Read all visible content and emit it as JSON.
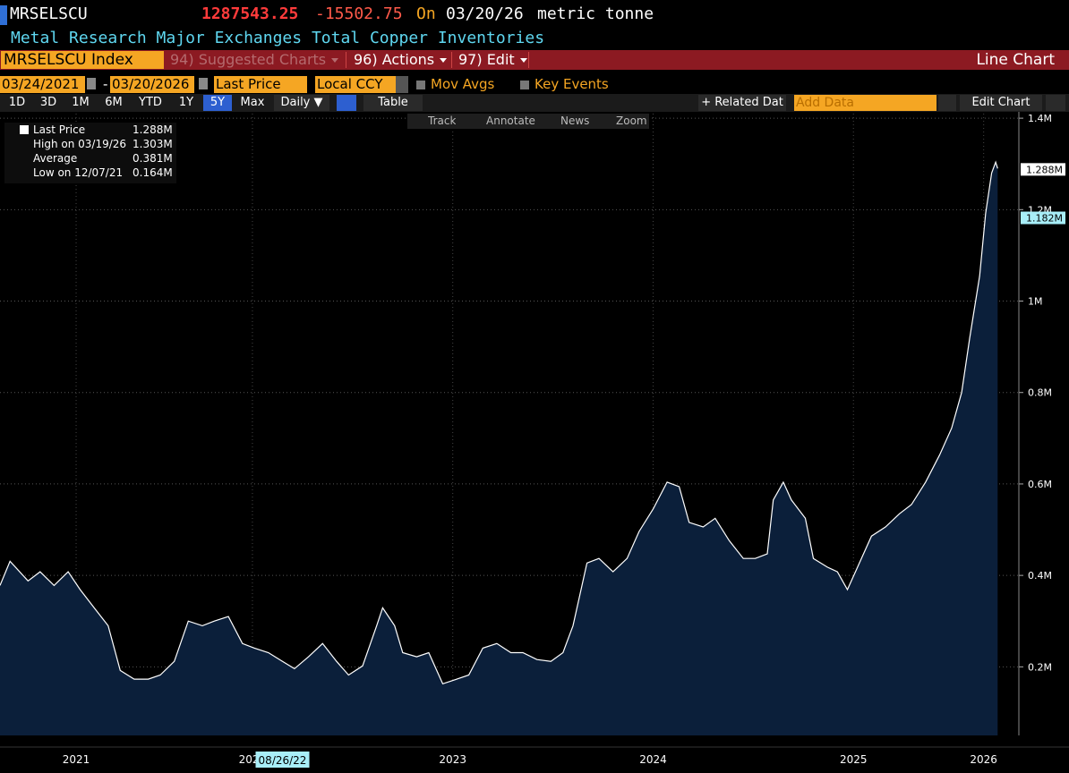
{
  "header": {
    "ticker": "MRSELSCU",
    "price": 1287543.25,
    "change": -15502.75,
    "on": "On",
    "date": "03/20/26",
    "unit": "metric tonne",
    "description": "Metal Research Major Exchanges Total Copper Inventories"
  },
  "toolbar": {
    "security": "MRSELSCU Index",
    "suggested": "94) Suggested Charts",
    "actions": "96) Actions",
    "edit": "97) Edit",
    "chart_type": "Line Chart"
  },
  "range_bar": {
    "start": "03/24/2021",
    "dash": "-",
    "end": "03/20/2026",
    "field": "Last Price",
    "currency": "Local CCY",
    "mov_avgs": "Mov Avgs",
    "key_events": "Key Events"
  },
  "buttons": [
    "1D",
    "3D",
    "1M",
    "6M",
    "YTD",
    "1Y",
    "5Y",
    "Max"
  ],
  "frequency": "Daily ▼",
  "table": "Table",
  "related": "+ Related Dat",
  "add_data": "Add Data",
  "edit_chart": "Edit Chart",
  "tools": [
    "Track",
    "Annotate",
    "News",
    "Zoom"
  ],
  "legend_box": [
    {
      "label": "Last Price",
      "value": "1.288M"
    },
    {
      "label": "High on 03/19/26",
      "value": "1.303M"
    },
    {
      "label": "Average",
      "value": "0.381M"
    },
    {
      "label": "Low on 12/07/21",
      "value": "0.164M"
    }
  ],
  "chart_data": {
    "type": "area",
    "color": "#0b1f3a",
    "line_color": "#ffffff",
    "grid": true,
    "x": [
      2021.24,
      2021.29,
      2021.38,
      2021.44,
      2021.51,
      2021.58,
      2021.64,
      2021.71,
      2021.78,
      2021.84,
      2021.91,
      2021.98,
      2022.04,
      2022.11,
      2022.18,
      2022.25,
      2022.31,
      2022.38,
      2022.45,
      2022.51,
      2022.58,
      2022.65,
      2022.71,
      2022.78,
      2022.85,
      2022.92,
      2022.98,
      2023.05,
      2023.12,
      2023.15,
      2023.21,
      2023.25,
      2023.32,
      2023.38,
      2023.45,
      2023.52,
      2023.58,
      2023.65,
      2023.72,
      2023.79,
      2023.85,
      2023.92,
      2023.99,
      2024.05,
      2024.1,
      2024.17,
      2024.23,
      2024.3,
      2024.37,
      2024.43,
      2024.5,
      2024.57,
      2024.63,
      2024.68,
      2024.75,
      2024.81,
      2024.88,
      2024.95,
      2025.01,
      2025.07,
      2025.1,
      2025.15,
      2025.19,
      2025.26,
      2025.3,
      2025.37,
      2025.42,
      2025.47,
      2025.53,
      2025.59,
      2025.66,
      2025.73,
      2025.79,
      2025.86,
      2025.93,
      2025.99,
      2026.04,
      2026.08,
      2026.13,
      2026.16,
      2026.19,
      2026.21,
      2026.22
    ],
    "values": [
      0.378,
      0.431,
      0.388,
      0.408,
      0.378,
      0.408,
      0.369,
      0.329,
      0.29,
      0.192,
      0.173,
      0.173,
      0.182,
      0.212,
      0.3,
      0.29,
      0.3,
      0.31,
      0.251,
      0.241,
      0.231,
      0.212,
      0.196,
      0.222,
      0.251,
      0.212,
      0.182,
      0.202,
      0.29,
      0.329,
      0.29,
      0.231,
      0.222,
      0.231,
      0.163,
      0.173,
      0.182,
      0.241,
      0.251,
      0.231,
      0.231,
      0.216,
      0.212,
      0.231,
      0.29,
      0.427,
      0.437,
      0.408,
      0.437,
      0.496,
      0.545,
      0.604,
      0.594,
      0.516,
      0.506,
      0.525,
      0.476,
      0.437,
      0.437,
      0.447,
      0.565,
      0.604,
      0.565,
      0.525,
      0.437,
      0.418,
      0.408,
      0.369,
      0.427,
      0.486,
      0.506,
      0.535,
      0.555,
      0.604,
      0.663,
      0.722,
      0.8,
      0.918,
      1.055,
      1.192,
      1.28,
      1.304,
      1.29
    ],
    "xlim": [
      2021.24,
      2026.29
    ],
    "ylim": [
      0.05,
      1.41
    ],
    "xticks": [
      {
        "value": 2021.62,
        "label": "2021"
      },
      {
        "value": 2022.5,
        "label": "2022"
      },
      {
        "value": 2023.5,
        "label": "2023"
      },
      {
        "value": 2024.5,
        "label": "2024"
      },
      {
        "value": 2025.5,
        "label": "2025"
      },
      {
        "value": 2026.15,
        "label": "2026"
      }
    ],
    "yticks": [
      {
        "value": 0.2,
        "label": "0.2M"
      },
      {
        "value": 0.4,
        "label": "0.4M"
      },
      {
        "value": 0.6,
        "label": "0.6M"
      },
      {
        "value": 0.8,
        "label": "0.8M"
      },
      {
        "value": 1,
        "label": "1M"
      },
      {
        "value": 1.2,
        "label": "1.2M"
      },
      {
        "value": 1.4,
        "label": "1.4M"
      }
    ],
    "annotations": [
      {
        "value": 1.288,
        "label": "1.288M"
      },
      {
        "value": 1.182,
        "label": "1.182M"
      }
    ],
    "crosshair": {
      "x": 2022.65,
      "label": "08/26/22"
    }
  }
}
